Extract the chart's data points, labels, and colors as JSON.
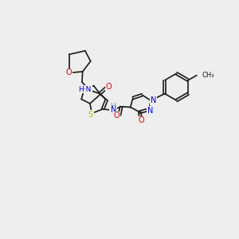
{
  "bg_color": "#eeeeee",
  "bond_color": "#1a1a1a",
  "atom_colors": {
    "O": "#dd0000",
    "N": "#0000cc",
    "S": "#bbbb00",
    "H": "#5f8fa0",
    "C": "#1a1a1a"
  },
  "figsize": [
    3.0,
    3.0
  ],
  "dpi": 100
}
